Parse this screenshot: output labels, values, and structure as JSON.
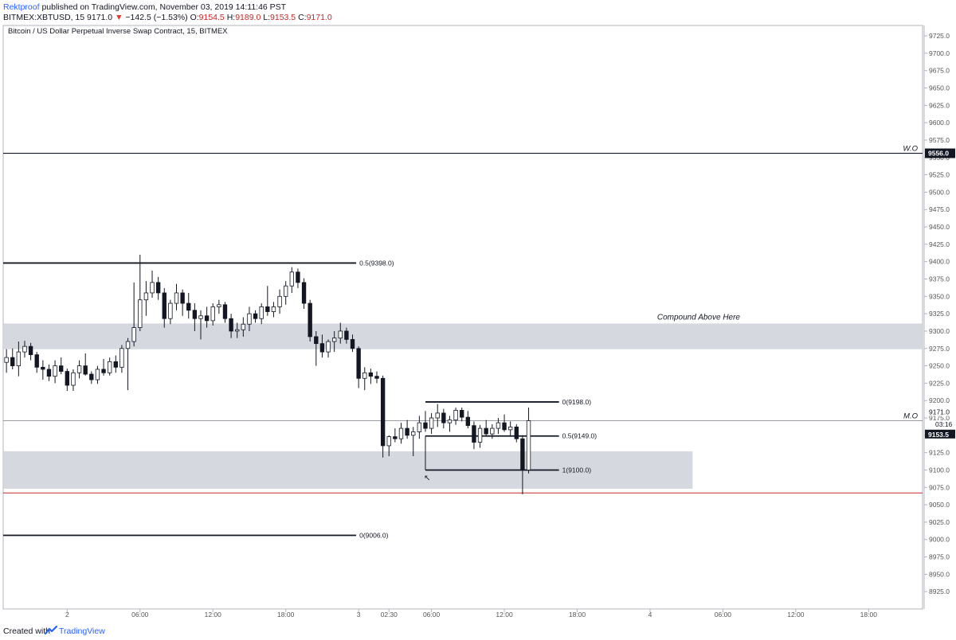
{
  "header": {
    "author": "Rektproof",
    "published_text": "published on TradingView.com, November 03, 2019 14:11:46 PST",
    "symbol_line": "BITMEX:XBTUSD, 15",
    "last_price": "9171.0",
    "change_arrow": "▼",
    "change": "−142.5 (−1.53%)",
    "o_label": "O:",
    "o_value": "9154.5",
    "h_label": "H:",
    "h_value": "9189.0",
    "l_label": "L:",
    "l_value": "9153.5",
    "c_label": "C:",
    "c_value": "9171.0"
  },
  "chart_data": {
    "type": "candlestick",
    "title": "Bitcoin / US Dollar Perpetual Inverse Swap Contract, 15, BITMEX",
    "ylim": [
      8900,
      9740
    ],
    "y_ticks": [
      "9725.0",
      "9700.0",
      "9675.0",
      "9650.0",
      "9625.0",
      "9600.0",
      "9575.0",
      "9550.0",
      "9525.0",
      "9500.0",
      "9475.0",
      "9450.0",
      "9425.0",
      "9400.0",
      "9375.0",
      "9350.0",
      "9325.0",
      "9300.0",
      "9275.0",
      "9250.0",
      "9225.0",
      "9200.0",
      "9175.0",
      "9150.0",
      "9125.0",
      "9100.0",
      "9075.0",
      "9050.0",
      "9025.0",
      "9000.0",
      "8975.0",
      "8950.0",
      "8925.0"
    ],
    "x_ticks": [
      {
        "label": "2",
        "h": -8
      },
      {
        "label": "06:00",
        "h": -2
      },
      {
        "label": "12:00",
        "h": 4
      },
      {
        "label": "18:00",
        "h": 10
      },
      {
        "label": "3",
        "h": 16
      },
      {
        "label": "02:30",
        "h": 18.5
      },
      {
        "label": "06:00",
        "h": 22
      },
      {
        "label": "12:00",
        "h": 28
      },
      {
        "label": "18:00",
        "h": 34
      },
      {
        "label": "4",
        "h": 40
      },
      {
        "label": "06:00",
        "h": 46
      },
      {
        "label": "12:00",
        "h": 52
      },
      {
        "label": "18:00",
        "h": 58
      }
    ],
    "x_range_hours": [
      -13.27,
      62.44
    ],
    "price_markers": [
      {
        "value": 9556.0,
        "label": "9556.0",
        "line_label": "W.O"
      },
      {
        "value": 9171.0,
        "label": "9171.0",
        "line_label": "M.O"
      },
      {
        "value": 9153.5,
        "label": "9153.5",
        "countdown": "03:16"
      }
    ],
    "support_line": 9067,
    "zones": [
      {
        "from": 9274,
        "to": 9311,
        "label": "Compound Above Here",
        "h_start": -13.27,
        "h_end": 62.44
      },
      {
        "from": 9073,
        "to": 9127,
        "label": "",
        "h_start": -13.27,
        "h_end": 43.5
      }
    ],
    "fib_levels": [
      {
        "value": 9398.0,
        "label": "0.5(9398.0)",
        "h_start": -13.27,
        "h_end": 15.8
      },
      {
        "value": 9006.0,
        "label": "0(9006.0)",
        "h_start": -13.27,
        "h_end": 15.8
      },
      {
        "value": 9198.0,
        "label": "0(9198.0)",
        "h_start": 21.5,
        "h_end": 32.5
      },
      {
        "value": 9149.0,
        "label": "0.5(9149.0)",
        "h_start": 21.5,
        "h_end": 32.5
      },
      {
        "value": 9100.0,
        "label": "1(9100.0)",
        "h_start": 21.5,
        "h_end": 32.5
      }
    ],
    "candles": [
      [
        -13.0,
        9255,
        9274,
        9240,
        9262
      ],
      [
        -12.5,
        9262,
        9275,
        9245,
        9250
      ],
      [
        -12.0,
        9250,
        9285,
        9235,
        9270
      ],
      [
        -11.5,
        9270,
        9286,
        9262,
        9278
      ],
      [
        -11.0,
        9278,
        9283,
        9258,
        9266
      ],
      [
        -10.5,
        9266,
        9270,
        9240,
        9248
      ],
      [
        -10.0,
        9248,
        9258,
        9230,
        9245
      ],
      [
        -9.5,
        9245,
        9252,
        9228,
        9235
      ],
      [
        -9.0,
        9235,
        9258,
        9225,
        9250
      ],
      [
        -8.5,
        9250,
        9262,
        9238,
        9242
      ],
      [
        -8.0,
        9242,
        9246,
        9214,
        9222
      ],
      [
        -7.5,
        9222,
        9245,
        9214,
        9240
      ],
      [
        -7.0,
        9240,
        9258,
        9232,
        9250
      ],
      [
        -6.5,
        9250,
        9268,
        9236,
        9238
      ],
      [
        -6.0,
        9238,
        9242,
        9224,
        9230
      ],
      [
        -5.5,
        9230,
        9250,
        9224,
        9245
      ],
      [
        -5.0,
        9245,
        9260,
        9236,
        9240
      ],
      [
        -4.5,
        9240,
        9262,
        9236,
        9256
      ],
      [
        -4.0,
        9256,
        9265,
        9240,
        9248
      ],
      [
        -3.5,
        9248,
        9280,
        9240,
        9275
      ],
      [
        -3.0,
        9275,
        9290,
        9215,
        9285
      ],
      [
        -2.5,
        9285,
        9370,
        9278,
        9305
      ],
      [
        -2.0,
        9305,
        9410,
        9300,
        9345
      ],
      [
        -1.5,
        9345,
        9372,
        9322,
        9355
      ],
      [
        -1.0,
        9355,
        9387,
        9348,
        9370
      ],
      [
        -0.5,
        9370,
        9378,
        9345,
        9355
      ],
      [
        0.0,
        9355,
        9362,
        9305,
        9318
      ],
      [
        0.5,
        9318,
        9345,
        9310,
        9340
      ],
      [
        1.0,
        9340,
        9368,
        9330,
        9355
      ],
      [
        1.5,
        9355,
        9360,
        9322,
        9340
      ],
      [
        2.0,
        9340,
        9355,
        9318,
        9330
      ],
      [
        2.5,
        9330,
        9340,
        9300,
        9318
      ],
      [
        3.0,
        9318,
        9330,
        9288,
        9322
      ],
      [
        3.5,
        9322,
        9335,
        9305,
        9315
      ],
      [
        4.0,
        9315,
        9340,
        9308,
        9335
      ],
      [
        4.5,
        9335,
        9345,
        9325,
        9338
      ],
      [
        5.0,
        9338,
        9342,
        9312,
        9318
      ],
      [
        5.5,
        9318,
        9325,
        9290,
        9300
      ],
      [
        6.0,
        9300,
        9312,
        9290,
        9302
      ],
      [
        6.5,
        9302,
        9320,
        9292,
        9310
      ],
      [
        7.0,
        9310,
        9335,
        9300,
        9325
      ],
      [
        7.5,
        9325,
        9330,
        9312,
        9318
      ],
      [
        8.0,
        9318,
        9340,
        9310,
        9335
      ],
      [
        8.5,
        9335,
        9365,
        9322,
        9328
      ],
      [
        9.0,
        9328,
        9342,
        9320,
        9335
      ],
      [
        9.5,
        9335,
        9360,
        9325,
        9350
      ],
      [
        10.0,
        9350,
        9372,
        9338,
        9365
      ],
      [
        10.5,
        9365,
        9392,
        9355,
        9385
      ],
      [
        11.0,
        9385,
        9390,
        9362,
        9370
      ],
      [
        11.5,
        9370,
        9376,
        9332,
        9340
      ],
      [
        12.0,
        9340,
        9345,
        9285,
        9292
      ],
      [
        12.5,
        9292,
        9300,
        9250,
        9282
      ],
      [
        13.0,
        9282,
        9295,
        9262,
        9270
      ],
      [
        13.5,
        9270,
        9288,
        9262,
        9285
      ],
      [
        14.0,
        9285,
        9300,
        9270,
        9290
      ],
      [
        14.5,
        9290,
        9312,
        9282,
        9300
      ],
      [
        15.0,
        9300,
        9305,
        9282,
        9288
      ],
      [
        15.5,
        9288,
        9295,
        9270,
        9275
      ],
      [
        16.0,
        9275,
        9278,
        9218,
        9232
      ],
      [
        16.5,
        9232,
        9248,
        9215,
        9240
      ],
      [
        17.0,
        9240,
        9246,
        9224,
        9235
      ],
      [
        17.5,
        9235,
        9242,
        9225,
        9232
      ],
      [
        18.0,
        9232,
        9236,
        9118,
        9135
      ],
      [
        18.5,
        9135,
        9150,
        9120,
        9148
      ],
      [
        19.0,
        9148,
        9160,
        9140,
        9145
      ],
      [
        19.5,
        9145,
        9168,
        9138,
        9160
      ],
      [
        20.0,
        9160,
        9172,
        9145,
        9150
      ],
      [
        20.5,
        9150,
        9162,
        9120,
        9155
      ],
      [
        21.0,
        9155,
        9178,
        9145,
        9168
      ],
      [
        21.5,
        9168,
        9185,
        9155,
        9160
      ],
      [
        22.0,
        9160,
        9182,
        9152,
        9175
      ],
      [
        22.5,
        9175,
        9195,
        9162,
        9182
      ],
      [
        23.0,
        9182,
        9188,
        9160,
        9168
      ],
      [
        23.5,
        9168,
        9178,
        9155,
        9172
      ],
      [
        24.0,
        9172,
        9190,
        9165,
        9186
      ],
      [
        24.5,
        9186,
        9190,
        9170,
        9176
      ],
      [
        25.0,
        9176,
        9185,
        9160,
        9164
      ],
      [
        25.5,
        9164,
        9170,
        9130,
        9140
      ],
      [
        26.0,
        9140,
        9165,
        9132,
        9160
      ],
      [
        26.5,
        9160,
        9172,
        9148,
        9152
      ],
      [
        27.0,
        9152,
        9166,
        9145,
        9160
      ],
      [
        27.5,
        9160,
        9175,
        9152,
        9168
      ],
      [
        28.0,
        9168,
        9180,
        9155,
        9158
      ],
      [
        28.5,
        9158,
        9170,
        9148,
        9162
      ],
      [
        29.0,
        9162,
        9166,
        9140,
        9145
      ],
      [
        29.5,
        9145,
        9150,
        9065,
        9100
      ],
      [
        30.0,
        9100,
        9190,
        9095,
        9171
      ]
    ]
  }
}
